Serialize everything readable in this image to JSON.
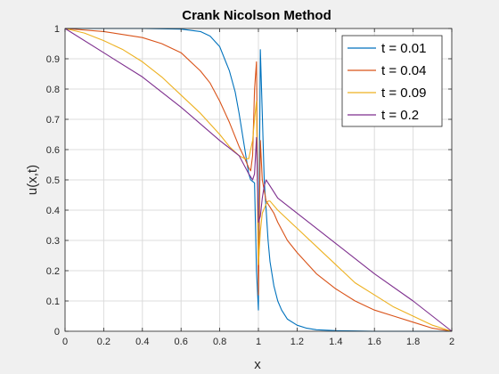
{
  "chart_data": {
    "type": "line",
    "title": "Crank Nicolson Method",
    "xlabel": "x",
    "ylabel": "u(x,t)",
    "xlim": [
      0,
      2
    ],
    "ylim": [
      0,
      1
    ],
    "xticks": [
      0,
      0.2,
      0.4,
      0.6,
      0.8,
      1,
      1.2,
      1.4,
      1.6,
      1.8,
      2
    ],
    "xtick_labels": [
      "0",
      "0.2",
      "0.4",
      "0.6",
      "0.8",
      "1",
      "1.2",
      "1.4",
      "1.6",
      "1.8",
      "2"
    ],
    "yticks": [
      0,
      0.1,
      0.2,
      0.3,
      0.4,
      0.5,
      0.6,
      0.7,
      0.8,
      0.9,
      1
    ],
    "ytick_labels": [
      "0",
      "0.1",
      "0.2",
      "0.3",
      "0.4",
      "0.5",
      "0.6",
      "0.7",
      "0.8",
      "0.9",
      "1"
    ],
    "grid": true,
    "legend_position": "top-right",
    "series": [
      {
        "name": "t = 0.01",
        "color": "#0072BD",
        "x": [
          0,
          0.2,
          0.4,
          0.6,
          0.7,
          0.75,
          0.8,
          0.85,
          0.88,
          0.9,
          0.92,
          0.94,
          0.95,
          0.96,
          0.97,
          0.98,
          0.99,
          1.0,
          1.01,
          1.02,
          1.03,
          1.04,
          1.05,
          1.06,
          1.08,
          1.1,
          1.12,
          1.15,
          1.2,
          1.25,
          1.3,
          1.4,
          1.5,
          1.6,
          1.8,
          2.0
        ],
        "y": [
          1,
          1,
          1,
          0.998,
          0.99,
          0.975,
          0.94,
          0.86,
          0.79,
          0.72,
          0.64,
          0.56,
          0.52,
          0.5,
          0.495,
          0.49,
          0.2,
          0.07,
          0.93,
          0.72,
          0.5,
          0.4,
          0.3,
          0.23,
          0.15,
          0.1,
          0.07,
          0.04,
          0.02,
          0.01,
          0.005,
          0.002,
          0.001,
          0,
          0,
          0
        ]
      },
      {
        "name": "t = 0.04",
        "color": "#D95319",
        "x": [
          0,
          0.2,
          0.4,
          0.5,
          0.6,
          0.7,
          0.75,
          0.8,
          0.85,
          0.9,
          0.93,
          0.95,
          0.96,
          0.97,
          0.98,
          0.99,
          1.0,
          1.01,
          1.02,
          1.04,
          1.06,
          1.08,
          1.1,
          1.15,
          1.2,
          1.3,
          1.4,
          1.5,
          1.6,
          1.7,
          1.8,
          1.9,
          2.0
        ],
        "y": [
          1,
          0.99,
          0.97,
          0.95,
          0.92,
          0.86,
          0.82,
          0.76,
          0.69,
          0.61,
          0.57,
          0.54,
          0.53,
          0.58,
          0.8,
          0.89,
          0.12,
          0.63,
          0.5,
          0.43,
          0.41,
          0.39,
          0.36,
          0.3,
          0.26,
          0.19,
          0.14,
          0.1,
          0.07,
          0.05,
          0.03,
          0.01,
          0
        ]
      },
      {
        "name": "t = 0.09",
        "color": "#EDB120",
        "x": [
          0,
          0.1,
          0.2,
          0.3,
          0.4,
          0.5,
          0.6,
          0.7,
          0.8,
          0.85,
          0.9,
          0.93,
          0.95,
          0.97,
          0.98,
          0.99,
          1.0,
          1.01,
          1.02,
          1.04,
          1.05,
          1.06,
          1.1,
          1.2,
          1.3,
          1.4,
          1.5,
          1.6,
          1.7,
          1.8,
          1.9,
          2.0
        ],
        "y": [
          1,
          0.985,
          0.96,
          0.93,
          0.89,
          0.84,
          0.78,
          0.72,
          0.65,
          0.61,
          0.58,
          0.57,
          0.57,
          0.63,
          0.7,
          0.76,
          0.22,
          0.33,
          0.39,
          0.42,
          0.43,
          0.43,
          0.4,
          0.34,
          0.28,
          0.22,
          0.16,
          0.12,
          0.08,
          0.05,
          0.02,
          0
        ]
      },
      {
        "name": "t = 0.2",
        "color": "#7E2F8E",
        "x": [
          0,
          0.2,
          0.4,
          0.6,
          0.8,
          0.9,
          0.95,
          0.97,
          0.98,
          0.99,
          1.0,
          1.01,
          1.02,
          1.03,
          1.04,
          1.05,
          1.07,
          1.1,
          1.2,
          1.4,
          1.6,
          1.8,
          2.0
        ],
        "y": [
          1,
          0.92,
          0.84,
          0.74,
          0.63,
          0.58,
          0.52,
          0.5,
          0.52,
          0.64,
          0.36,
          0.38,
          0.44,
          0.48,
          0.5,
          0.49,
          0.47,
          0.44,
          0.39,
          0.29,
          0.19,
          0.1,
          0
        ]
      }
    ]
  }
}
